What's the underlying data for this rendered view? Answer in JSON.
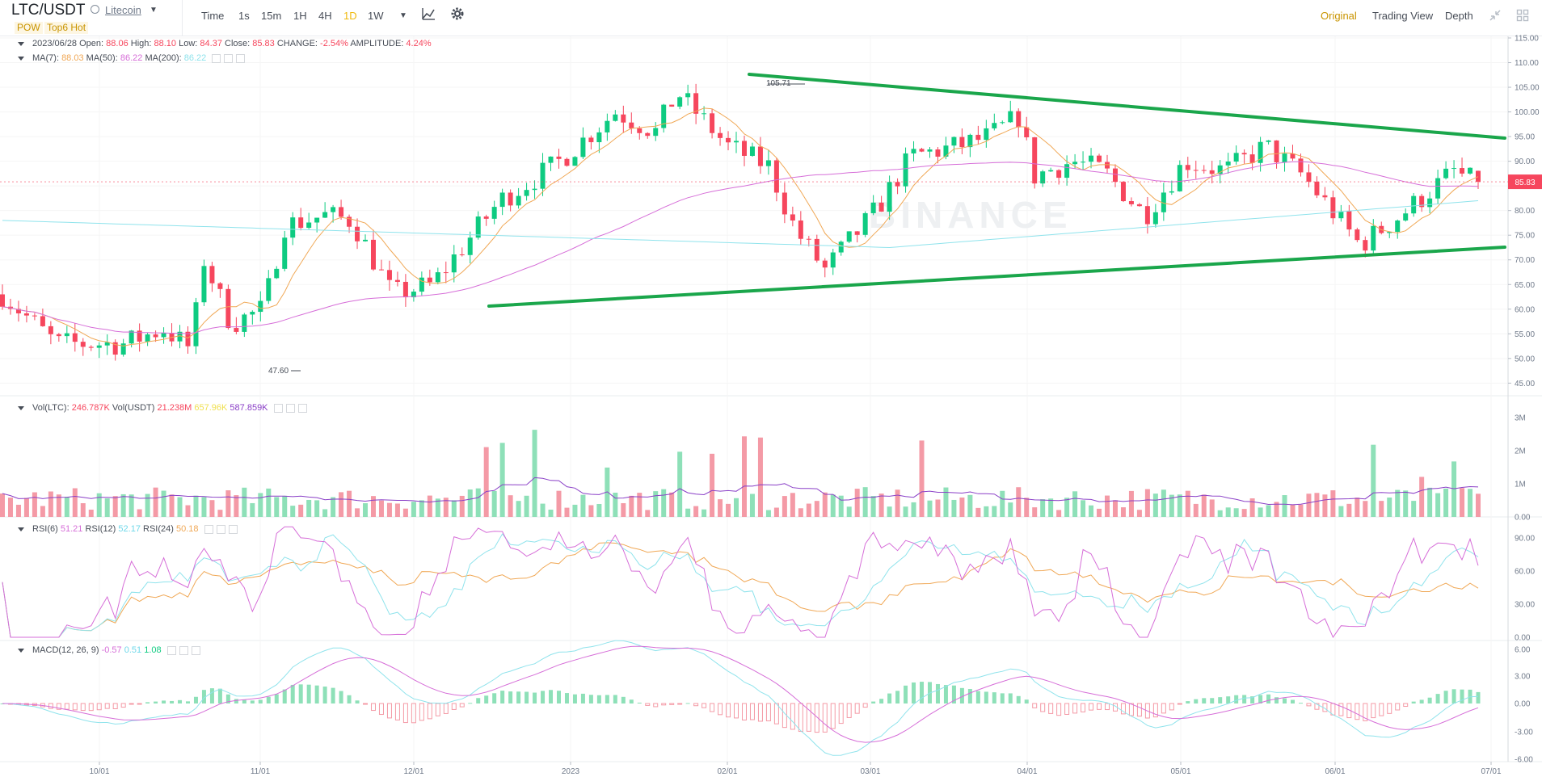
{
  "header": {
    "pair": "LTC/USDT",
    "coin_name": "Litecoin",
    "tags": [
      "POW",
      "Top6 Hot"
    ],
    "timeframes": [
      "Time",
      "1s",
      "15m",
      "1H",
      "4H",
      "1D",
      "1W"
    ],
    "active_timeframe": "1D",
    "views": [
      "Original",
      "Trading View",
      "Depth"
    ],
    "active_view": "Original"
  },
  "legend": {
    "ohlc": {
      "date": "2023/06/28",
      "open_label": "Open:",
      "open": "88.06",
      "high_label": "High:",
      "high": "88.10",
      "low_label": "Low:",
      "low": "84.37",
      "close_label": "Close:",
      "close": "85.83",
      "change_label": "CHANGE:",
      "change": "-2.54%",
      "amplitude_label": "AMPLITUDE:",
      "amplitude": "4.24%"
    },
    "ma": {
      "ma7_label": "MA(7):",
      "ma7": "88.03",
      "ma50_label": "MA(50):",
      "ma50": "86.22",
      "ma200_label": "MA(200):",
      "ma200": "86.22"
    },
    "vol": {
      "ltc_label": "Vol(LTC):",
      "ltc": "246.787K",
      "usdt_label": "Vol(USDT)",
      "usdt": "21.238M",
      "v1": "657.96K",
      "v2": "587.859K"
    },
    "rsi": {
      "r6_label": "RSI(6)",
      "r6": "51.21",
      "r12_label": "RSI(12)",
      "r12": "52.17",
      "r24_label": "RSI(24)",
      "r24": "50.18"
    },
    "macd": {
      "label": "MACD(12, 26, 9)",
      "macd": "-0.57",
      "dif": "0.51",
      "dea": "1.08"
    }
  },
  "price_axis": {
    "ticks": [
      "115.00",
      "110.00",
      "105.00",
      "100.00",
      "95.00",
      "90.00",
      "85.00",
      "80.00",
      "75.00",
      "70.00",
      "65.00",
      "60.00",
      "55.00",
      "50.00",
      "45.00"
    ],
    "current_price": "85.83",
    "high_marker": "105.71",
    "low_marker": "47.60"
  },
  "volume_axis": {
    "ticks": [
      "3M",
      "2M",
      "1M",
      "0.00"
    ]
  },
  "rsi_axis": {
    "ticks": [
      "90.00",
      "60.00",
      "30.00",
      "0.00"
    ]
  },
  "macd_axis": {
    "ticks": [
      "6.00",
      "3.00",
      "0.00",
      "-3.00",
      "-6.00"
    ]
  },
  "time_axis": {
    "labels": [
      "10/01",
      "11/01",
      "12/01",
      "2023",
      "02/01",
      "03/01",
      "04/01",
      "05/01",
      "06/01",
      "07/01"
    ]
  },
  "watermark": "BINANCE",
  "colors": {
    "up": "#0ecb81",
    "down": "#f6465d",
    "accent": "#f0b90b",
    "trendline": "#1aa64b",
    "ma7": "#f0a856",
    "ma50": "#d66ed8",
    "ma200": "#8fe3ec"
  },
  "chart_data": {
    "type": "candlestick",
    "symbol": "LTC/USDT",
    "interval": "1D",
    "x_range": [
      "2022-09-01",
      "2023-06-28"
    ],
    "y_range": [
      45,
      115
    ],
    "trendlines": [
      {
        "from": [
          "2022-12-21",
          61
        ],
        "to": [
          "2023-06-30",
          72.5
        ]
      },
      {
        "from": [
          "2023-01-27",
          107
        ],
        "to": [
          "2023-06-30",
          94.5
        ]
      }
    ],
    "last_candle": {
      "date": "2023/06/28",
      "open": 88.06,
      "high": 88.1,
      "low": 84.37,
      "close": 85.83
    }
  }
}
